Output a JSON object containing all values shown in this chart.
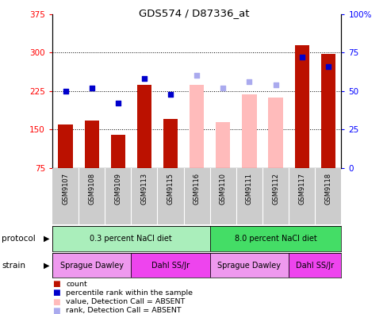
{
  "title": "GDS574 / D87336_at",
  "samples": [
    "GSM9107",
    "GSM9108",
    "GSM9109",
    "GSM9113",
    "GSM9115",
    "GSM9116",
    "GSM9110",
    "GSM9111",
    "GSM9112",
    "GSM9117",
    "GSM9118"
  ],
  "count_values": [
    160,
    168,
    140,
    237,
    170,
    null,
    null,
    null,
    null,
    315,
    297
  ],
  "count_absent": [
    null,
    null,
    null,
    null,
    null,
    237,
    165,
    218,
    212,
    null,
    null
  ],
  "rank_values": [
    50,
    52,
    42,
    58,
    48,
    null,
    null,
    null,
    null,
    72,
    66
  ],
  "rank_absent": [
    null,
    null,
    null,
    null,
    null,
    60,
    52,
    56,
    54,
    null,
    null
  ],
  "ylim_left": [
    75,
    375
  ],
  "ylim_right": [
    0,
    100
  ],
  "yticks_left": [
    75,
    150,
    225,
    300,
    375
  ],
  "ytick_labels_left": [
    "75",
    "150",
    "225",
    "300",
    "375"
  ],
  "yticks_right": [
    0,
    25,
    50,
    75,
    100
  ],
  "ytick_labels_right": [
    "0",
    "25",
    "50",
    "75",
    "100%"
  ],
  "color_bar": "#bb1100",
  "color_bar_absent": "#ffbbbb",
  "color_rank": "#0000cc",
  "color_rank_absent": "#aaaaee",
  "protocol_groups": [
    {
      "label": "0.3 percent NaCl diet",
      "start": 0,
      "end": 6,
      "color": "#aaeebb"
    },
    {
      "label": "8.0 percent NaCl diet",
      "start": 6,
      "end": 11,
      "color": "#44dd66"
    }
  ],
  "strain_groups": [
    {
      "label": "Sprague Dawley",
      "start": 0,
      "end": 3,
      "color": "#ee99ee"
    },
    {
      "label": "Dahl SS/Jr",
      "start": 3,
      "end": 6,
      "color": "#ee44ee"
    },
    {
      "label": "Sprague Dawley",
      "start": 6,
      "end": 9,
      "color": "#ee99ee"
    },
    {
      "label": "Dahl SS/Jr",
      "start": 9,
      "end": 11,
      "color": "#ee44ee"
    }
  ],
  "legend_labels": [
    "count",
    "percentile rank within the sample",
    "value, Detection Call = ABSENT",
    "rank, Detection Call = ABSENT"
  ],
  "legend_colors": [
    "#bb1100",
    "#0000cc",
    "#ffbbbb",
    "#aaaaee"
  ],
  "bg_color": "#ffffff",
  "label_bg": "#cccccc"
}
